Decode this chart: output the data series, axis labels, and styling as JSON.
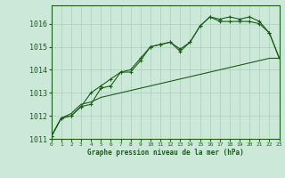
{
  "title": "Graphe pression niveau de la mer (hPa)",
  "x": [
    0,
    1,
    2,
    3,
    4,
    5,
    6,
    7,
    8,
    9,
    10,
    11,
    12,
    13,
    14,
    15,
    16,
    17,
    18,
    19,
    20,
    21,
    22,
    23
  ],
  "line1": [
    1011.1,
    1011.9,
    1012.0,
    1012.4,
    1012.5,
    1013.2,
    1013.3,
    1013.9,
    1013.9,
    1014.4,
    1015.0,
    1015.1,
    1015.2,
    1014.8,
    1015.2,
    1015.9,
    1016.3,
    1016.2,
    1016.3,
    1016.2,
    1016.3,
    1016.1,
    1015.6,
    1014.5
  ],
  "line2": [
    1011.1,
    1011.9,
    1012.0,
    1012.4,
    1013.0,
    1013.3,
    1013.6,
    1013.9,
    1014.0,
    1014.5,
    1015.0,
    1015.1,
    1015.2,
    1014.9,
    1015.2,
    1015.9,
    1016.3,
    1016.1,
    1016.1,
    1016.1,
    1016.1,
    1016.0,
    1015.6,
    1014.5
  ],
  "line3": [
    1011.1,
    1011.9,
    1012.1,
    1012.5,
    1012.6,
    1012.8,
    1012.9,
    1013.0,
    1013.1,
    1013.2,
    1013.3,
    1013.4,
    1013.5,
    1013.6,
    1013.7,
    1013.8,
    1013.9,
    1014.0,
    1014.1,
    1014.2,
    1014.3,
    1014.4,
    1014.5,
    1014.5
  ],
  "bg_color": "#cce8d8",
  "line_color": "#1a5e1a",
  "grid_color": "#aacfba",
  "text_color": "#1a5e1a",
  "ylim_min": 1011.0,
  "ylim_max": 1016.8,
  "yticks": [
    1011,
    1012,
    1013,
    1014,
    1015,
    1016
  ]
}
